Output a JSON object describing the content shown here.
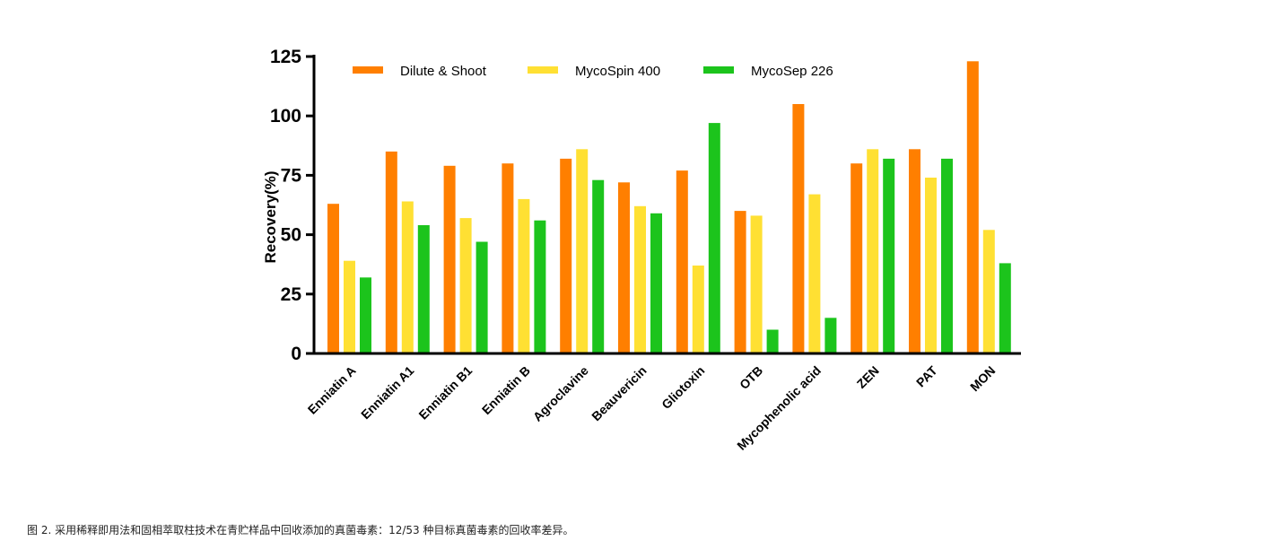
{
  "chart_data": {
    "type": "bar",
    "title": "",
    "xlabel": "",
    "ylabel": "Recovery(%)",
    "ylim": [
      0,
      125
    ],
    "yticks": [
      0,
      25,
      50,
      75,
      100,
      125
    ],
    "ytick_labels": [
      "0",
      "25",
      "50",
      "75",
      "100",
      "125"
    ],
    "grid": false,
    "legend_position": "top",
    "categories": [
      "Enniatin A",
      "Enniatin A1",
      "Enniatin B1",
      "Enniatin B",
      "Agroclavine",
      "Beauvericin",
      "Gliotoxin",
      "OTB",
      "Mycophenolic acid",
      "ZEN",
      "PAT",
      "MON"
    ],
    "series": [
      {
        "name": "Dilute & Shoot",
        "color": "#ff7f00",
        "values": [
          63,
          85,
          79,
          80,
          82,
          72,
          77,
          60,
          105,
          80,
          86,
          123
        ]
      },
      {
        "name": "MycoSpin 400",
        "color": "#ffe033",
        "values": [
          39,
          64,
          57,
          65,
          86,
          62,
          37,
          58,
          67,
          86,
          74,
          52
        ]
      },
      {
        "name": "MycoSep 226",
        "color": "#1cc41c",
        "values": [
          32,
          54,
          47,
          56,
          73,
          59,
          97,
          10,
          15,
          82,
          82,
          38
        ]
      }
    ]
  },
  "caption": "图 2. 采用稀释即用法和固相萃取柱技术在青贮样品中回收添加的真菌毒素：12/53 种目标真菌毒素的回收率差异。"
}
